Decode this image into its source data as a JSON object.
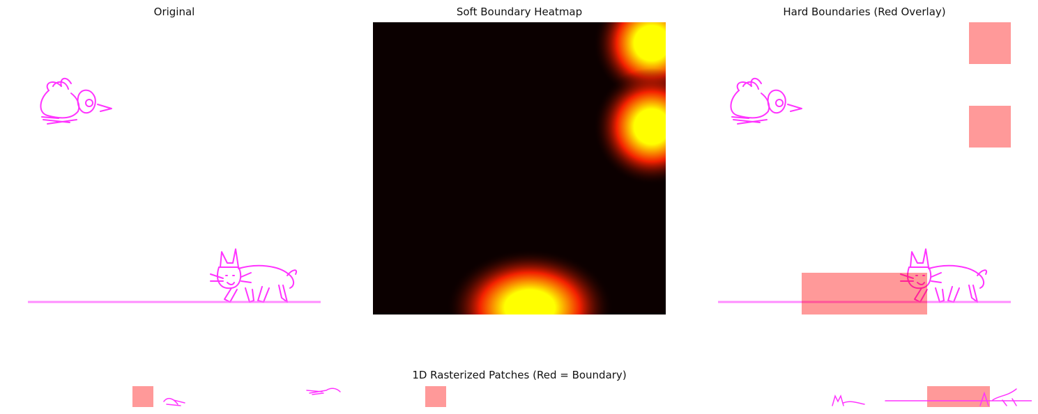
{
  "titles": {
    "original": "Original",
    "heatmap": "Soft Boundary Heatmap",
    "hard": "Hard Boundaries (Red Overlay)",
    "strip": "1D Rasterized Patches (Red = Boundary)"
  },
  "colors": {
    "stroke": "#ff33ff",
    "ground": "#ff66ff",
    "overlay": "#ff9999",
    "heat_low": "#0b0000",
    "heat_mid": "#ff2200",
    "heat_high": "#ffff00"
  },
  "icons": [
    "bird-drawing",
    "cat-drawing"
  ],
  "chart_data": [
    {
      "type": "image",
      "title": "Original",
      "content": [
        "bird sketch",
        "cat sketch",
        "ground line"
      ]
    },
    {
      "type": "heatmap",
      "title": "Soft Boundary Heatmap",
      "grid_cols": 7,
      "grid_rows": 7,
      "hotspots": [
        {
          "col": 6,
          "row": 0,
          "intensity": 1.0
        },
        {
          "col": 6,
          "row": 2,
          "intensity": 1.0
        },
        {
          "col": 3,
          "row": 6,
          "intensity": 1.0
        }
      ]
    },
    {
      "type": "image",
      "title": "Hard Boundaries (Red Overlay)",
      "boundary_patches": [
        {
          "col": 6,
          "row": 0
        },
        {
          "col": 6,
          "row": 2
        },
        {
          "col": 2,
          "row": 6
        },
        {
          "col": 3,
          "row": 6
        },
        {
          "col": 4,
          "row": 6
        }
      ]
    },
    {
      "type": "strip",
      "title": "1D Rasterized Patches (Red = Boundary)",
      "boundary_indices": [
        5,
        19,
        43,
        44,
        45
      ]
    }
  ]
}
